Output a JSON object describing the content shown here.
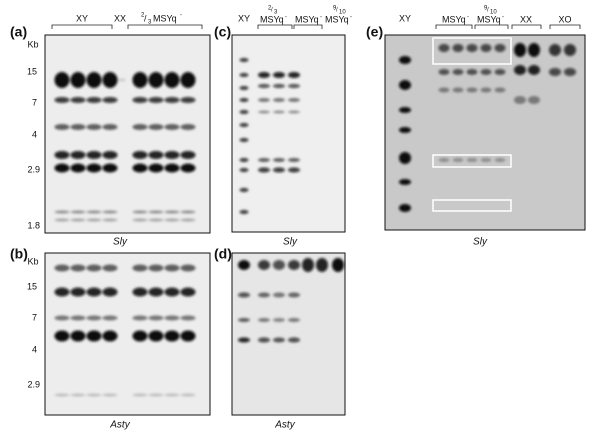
{
  "panels": [
    {
      "label": "(a)",
      "lanes": [
        {
          "text": "XY"
        },
        {
          "text": "XX"
        },
        {
          "num": "2",
          "den": "3",
          "text": "MSYq",
          "sup": "-"
        }
      ],
      "size_unit": "Kb",
      "sizes": [
        "15",
        "7",
        "4",
        "2.9",
        "1.8"
      ],
      "caption": "Sly"
    },
    {
      "label": "(b)",
      "size_unit": "Kb",
      "sizes": [
        "15",
        "7",
        "4",
        "2.9"
      ],
      "caption": "Asty"
    },
    {
      "label": "(c)",
      "lanes": [
        {
          "text": "XY"
        },
        {
          "num": "2",
          "den": "3",
          "text": "MSYq",
          "sup": "-"
        },
        {
          "text": "MSYq",
          "sup": "-"
        },
        {
          "num": "9",
          "den": "10",
          "text": "MSYq",
          "sup": "-"
        }
      ],
      "caption": "Sly"
    },
    {
      "label": "(d)",
      "caption": "Asty"
    },
    {
      "label": "(e)",
      "lanes": [
        {
          "text": "XY"
        },
        {
          "text": "MSYq",
          "sup": "-"
        },
        {
          "num": "9",
          "den": "10",
          "text": "MSYq",
          "sup": "-"
        },
        {
          "text": "XX"
        },
        {
          "text": "XO"
        }
      ],
      "caption": "Sly"
    }
  ]
}
